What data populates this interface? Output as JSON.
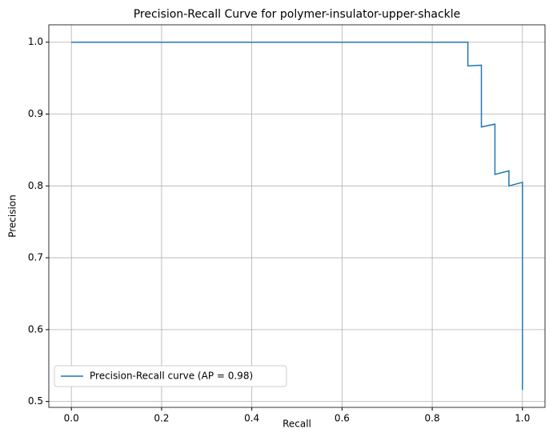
{
  "chart_data": {
    "type": "line",
    "title": "Precision-Recall Curve for polymer-insulator-upper-shackle",
    "x_label": "Recall",
    "y_label": "Precision",
    "x": [
      0,
      0.879,
      0.879,
      0.909,
      0.909,
      0.939,
      0.939,
      0.97,
      0.97,
      1.0,
      1.0
    ],
    "series": [
      {
        "name": "Precision-Recall curve (AP = 0.98)",
        "color": "#1f77b4",
        "values": [
          1.0,
          1.0,
          0.967,
          0.968,
          0.882,
          0.886,
          0.816,
          0.821,
          0.8,
          0.805,
          0.516
        ]
      }
    ],
    "xlim": [
      -0.05,
      1.05
    ],
    "ylim": [
      0.4918,
      1.0242
    ],
    "xticks": [
      {
        "value": 0,
        "label": "0.0"
      },
      0.2,
      0.4,
      0.6,
      0.8,
      {
        "value": 1,
        "label": "1.0"
      }
    ],
    "yticks": [
      0.5,
      0.6,
      0.7,
      0.8,
      0.9,
      {
        "value": 1,
        "label": "1.0"
      }
    ],
    "grid": true,
    "legend": "lower-left"
  }
}
